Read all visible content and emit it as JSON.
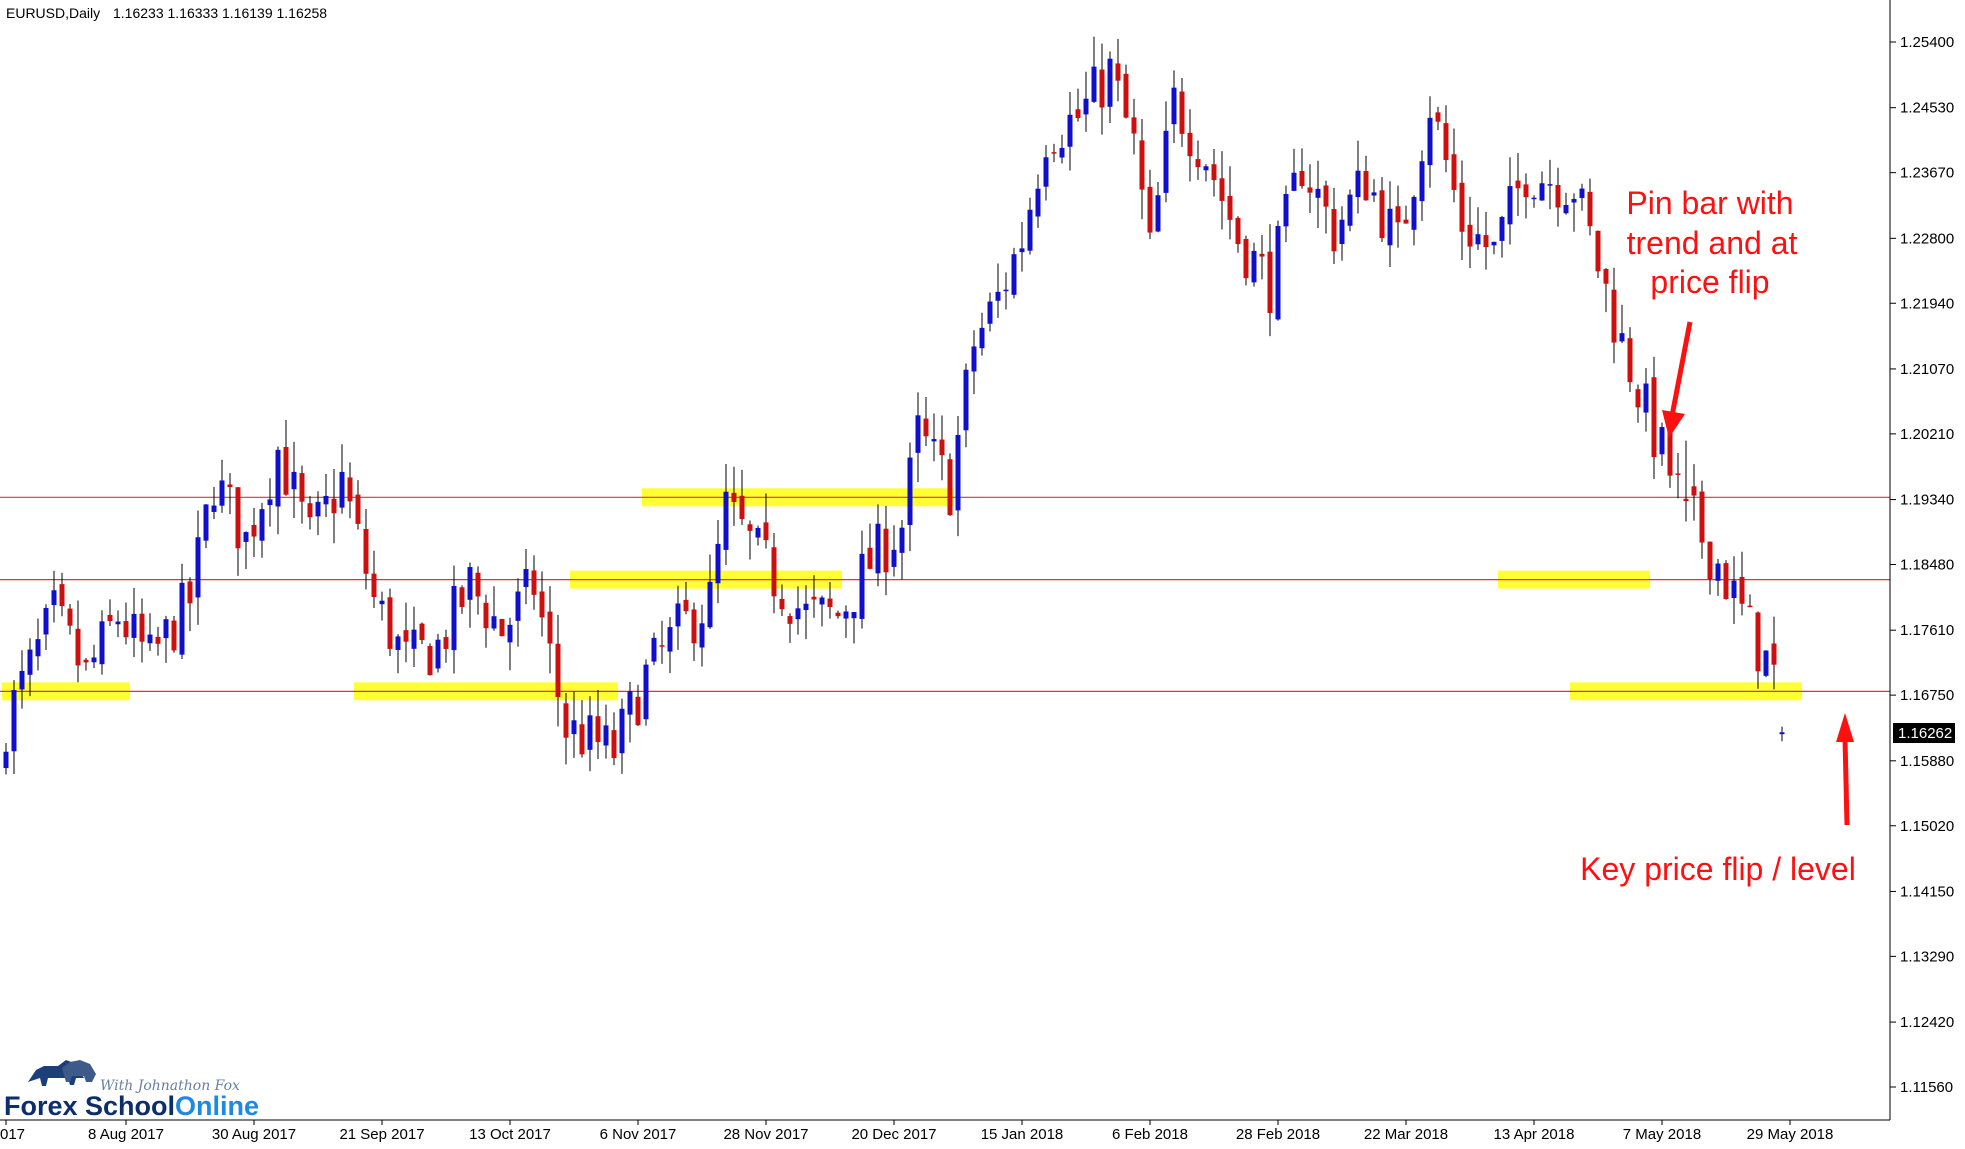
{
  "header": {
    "symbol": "EURUSD,Daily",
    "ohlc": "1.16233 1.16333 1.16139 1.16258"
  },
  "current_price_label": "1.16262",
  "annotations": [
    "Pin bar with",
    "trend and at",
    "price flip",
    "Key price flip / level"
  ],
  "logo": {
    "tagline": "With Johnathon Fox",
    "word1": "Forex School",
    "word2": "Online"
  },
  "colors": {
    "bull_body": "#1010cc",
    "bear_body": "#cc1010",
    "wick": "#000000",
    "level_line": "#e83030",
    "zone": "#ffff33",
    "annotation": "#ff1010",
    "logo_dark": "#0c2e6e",
    "logo_accent": "#1e88e5"
  },
  "chart_data": {
    "type": "candlestick",
    "title": "EURUSD,Daily",
    "y_ticks": [
      "1.25400",
      "1.24530",
      "1.23670",
      "1.22800",
      "1.21940",
      "1.21070",
      "1.20210",
      "1.19340",
      "1.18480",
      "1.17610",
      "1.16750",
      "1.15880",
      "1.15020",
      "1.14150",
      "1.13290",
      "1.12420",
      "1.11560"
    ],
    "ylim": [
      1.1095,
      1.2605
    ],
    "x_ticks": [
      {
        "label": "017",
        "index": 0
      },
      {
        "label": "8 Aug 2017",
        "index": 15
      },
      {
        "label": "30 Aug 2017",
        "index": 31
      },
      {
        "label": "21 Sep 2017",
        "index": 47
      },
      {
        "label": "13 Oct 2017",
        "index": 63
      },
      {
        "label": "6 Nov 2017",
        "index": 79
      },
      {
        "label": "28 Nov 2017",
        "index": 95
      },
      {
        "label": "20 Dec 2017",
        "index": 111
      },
      {
        "label": "15 Jan 2018",
        "index": 127
      },
      {
        "label": "6 Feb 2018",
        "index": 143
      },
      {
        "label": "28 Feb 2018",
        "index": 159
      },
      {
        "label": "22 Mar 2018",
        "index": 175
      },
      {
        "label": "13 Apr 2018",
        "index": 191
      },
      {
        "label": "7 May 2018",
        "index": 207
      },
      {
        "label": "29 May 2018",
        "index": 223
      }
    ],
    "close_path": [
      [
        0,
        1.164
      ],
      [
        6,
        1.178
      ],
      [
        10,
        1.17
      ],
      [
        14,
        1.178
      ],
      [
        18,
        1.172
      ],
      [
        23,
        1.18
      ],
      [
        26,
        1.196
      ],
      [
        30,
        1.188
      ],
      [
        34,
        1.2
      ],
      [
        38,
        1.188
      ],
      [
        42,
        1.196
      ],
      [
        46,
        1.18
      ],
      [
        50,
        1.172
      ],
      [
        54,
        1.174
      ],
      [
        58,
        1.182
      ],
      [
        62,
        1.176
      ],
      [
        66,
        1.182
      ],
      [
        70,
        1.163
      ],
      [
        76,
        1.16
      ],
      [
        80,
        1.17
      ],
      [
        84,
        1.176
      ],
      [
        88,
        1.18
      ],
      [
        90,
        1.192
      ],
      [
        96,
        1.183
      ],
      [
        100,
        1.178
      ],
      [
        104,
        1.178
      ],
      [
        108,
        1.185
      ],
      [
        112,
        1.19
      ],
      [
        114,
        1.202
      ],
      [
        118,
        1.195
      ],
      [
        121,
        1.214
      ],
      [
        124,
        1.22
      ],
      [
        127,
        1.228
      ],
      [
        130,
        1.242
      ],
      [
        134,
        1.244
      ],
      [
        138,
        1.25
      ],
      [
        141,
        1.24
      ],
      [
        143,
        1.226
      ],
      [
        146,
        1.246
      ],
      [
        150,
        1.239
      ],
      [
        154,
        1.228
      ],
      [
        158,
        1.222
      ],
      [
        162,
        1.238
      ],
      [
        166,
        1.229
      ],
      [
        170,
        1.236
      ],
      [
        174,
        1.227
      ],
      [
        178,
        1.246
      ],
      [
        182,
        1.23
      ],
      [
        186,
        1.226
      ],
      [
        190,
        1.237
      ],
      [
        196,
        1.235
      ],
      [
        198,
        1.228
      ],
      [
        202,
        1.214
      ],
      [
        206,
        1.202
      ],
      [
        210,
        1.192
      ],
      [
        214,
        1.185
      ],
      [
        218,
        1.176
      ],
      [
        221,
        1.17
      ],
      [
        222,
        1.1626
      ]
    ],
    "levels": [
      1.1937,
      1.1828,
      1.168
    ],
    "zones": [
      {
        "price": 1.168,
        "from_index": 0,
        "to_index": 15
      },
      {
        "price": 1.168,
        "from_index": 44,
        "to_index": 76
      },
      {
        "price": 1.1937,
        "from_index": 80,
        "to_index": 118
      },
      {
        "price": 1.1828,
        "from_index": 71,
        "to_index": 104
      },
      {
        "price": 1.1828,
        "from_index": 187,
        "to_index": 205
      },
      {
        "price": 1.168,
        "from_index": 196,
        "to_index": 224
      }
    ],
    "pin_bar_index": 210,
    "last_price": 1.16262
  }
}
